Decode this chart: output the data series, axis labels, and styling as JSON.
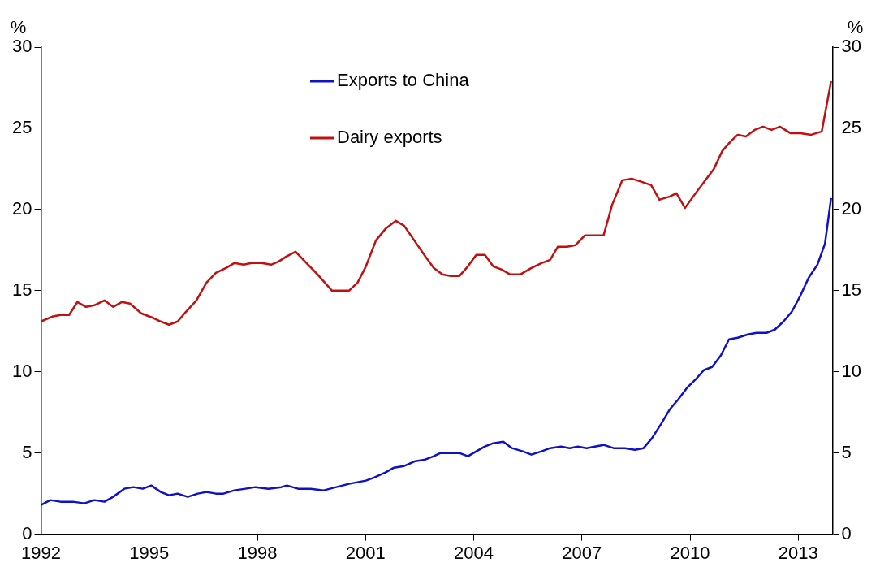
{
  "chart_data": {
    "type": "line",
    "ylabel": "%",
    "y2label": "%",
    "xlim": [
      1992,
      2013.95
    ],
    "xticks": [
      1992,
      1995,
      1998,
      2001,
      2004,
      2007,
      2010,
      2013
    ],
    "ylim": [
      0,
      30
    ],
    "yticks": [
      0,
      5,
      10,
      15,
      20,
      25,
      30
    ],
    "y2lim": [
      0,
      30
    ],
    "y2ticks": [
      0,
      5,
      10,
      15,
      20,
      25,
      30
    ],
    "grid": false,
    "legend": "top",
    "marker": "none",
    "line_style": "solid",
    "series": [
      {
        "name": "Exports to China",
        "color": "#1010c8",
        "x": [
          1992.0,
          1992.26,
          1992.54,
          1992.89,
          1993.2,
          1993.48,
          1993.76,
          1994.0,
          1994.31,
          1994.56,
          1994.82,
          1995.06,
          1995.32,
          1995.55,
          1995.79,
          1996.07,
          1996.35,
          1996.59,
          1996.85,
          1997.06,
          1997.36,
          1997.67,
          1997.95,
          1998.31,
          1998.66,
          1998.82,
          1999.13,
          1999.48,
          1999.84,
          2000.19,
          2000.54,
          2001.01,
          2001.25,
          2001.55,
          2001.79,
          2002.07,
          2002.38,
          2002.66,
          2002.89,
          2003.08,
          2003.36,
          2003.6,
          2003.84,
          2004.07,
          2004.31,
          2004.54,
          2004.82,
          2005.06,
          2005.36,
          2005.6,
          2005.88,
          2006.12,
          2006.42,
          2006.66,
          2006.89,
          2007.13,
          2007.36,
          2007.6,
          2007.88,
          2008.19,
          2008.47,
          2008.71,
          2008.94,
          2009.2,
          2009.44,
          2009.67,
          2009.91,
          2010.14,
          2010.38,
          2010.61,
          2010.85,
          2011.08,
          2011.32,
          2011.6,
          2011.84,
          2012.12,
          2012.35,
          2012.59,
          2012.82,
          2013.06,
          2013.29,
          2013.53,
          2013.74,
          2013.91
        ],
        "values": [
          1.8,
          2.1,
          2.0,
          2.0,
          1.9,
          2.1,
          2.0,
          2.3,
          2.8,
          2.9,
          2.8,
          3.0,
          2.6,
          2.4,
          2.5,
          2.3,
          2.5,
          2.6,
          2.5,
          2.5,
          2.7,
          2.8,
          2.9,
          2.8,
          2.9,
          3.0,
          2.8,
          2.8,
          2.7,
          2.9,
          3.1,
          3.3,
          3.5,
          3.8,
          4.1,
          4.2,
          4.5,
          4.6,
          4.8,
          5.0,
          5.0,
          5.0,
          4.8,
          5.1,
          5.4,
          5.6,
          5.7,
          5.3,
          5.1,
          4.9,
          5.1,
          5.3,
          5.4,
          5.3,
          5.4,
          5.3,
          5.4,
          5.5,
          5.3,
          5.3,
          5.2,
          5.3,
          5.9,
          6.8,
          7.7,
          8.3,
          9.0,
          9.5,
          10.1,
          10.3,
          11.0,
          12.0,
          12.1,
          12.3,
          12.4,
          12.4,
          12.6,
          13.1,
          13.7,
          14.7,
          15.8,
          16.6,
          17.9,
          20.7
        ]
      },
      {
        "name": "Dairy exports",
        "color": "#c01010",
        "x": [
          1992.0,
          1992.31,
          1992.54,
          1992.78,
          1993.01,
          1993.25,
          1993.48,
          1993.76,
          1994.0,
          1994.24,
          1994.47,
          1994.78,
          1995.13,
          1995.32,
          1995.55,
          1995.79,
          1996.02,
          1996.31,
          1996.59,
          1996.85,
          1997.13,
          1997.36,
          1997.62,
          1997.84,
          1998.12,
          1998.38,
          1998.59,
          1998.8,
          1999.06,
          1999.32,
          1999.67,
          2000.07,
          2000.54,
          2000.78,
          2001.01,
          2001.29,
          2001.55,
          2001.84,
          2002.07,
          2002.35,
          2002.66,
          2002.89,
          2003.13,
          2003.36,
          2003.6,
          2003.84,
          2004.07,
          2004.31,
          2004.54,
          2004.78,
          2005.01,
          2005.29,
          2005.6,
          2005.88,
          2006.12,
          2006.33,
          2006.59,
          2006.82,
          2007.08,
          2007.32,
          2007.6,
          2007.84,
          2008.12,
          2008.38,
          2008.66,
          2008.92,
          2009.15,
          2009.44,
          2009.62,
          2009.86,
          2010.12,
          2010.42,
          2010.66,
          2010.89,
          2011.13,
          2011.32,
          2011.55,
          2011.79,
          2012.02,
          2012.26,
          2012.49,
          2012.78,
          2013.06,
          2013.36,
          2013.65,
          2013.91
        ],
        "values": [
          13.1,
          13.4,
          13.5,
          13.5,
          14.3,
          14.0,
          14.1,
          14.4,
          14.0,
          14.3,
          14.2,
          13.6,
          13.3,
          13.1,
          12.9,
          13.1,
          13.7,
          14.4,
          15.5,
          16.1,
          16.4,
          16.7,
          16.6,
          16.7,
          16.7,
          16.6,
          16.8,
          17.1,
          17.4,
          16.8,
          16.0,
          15.0,
          15.0,
          15.5,
          16.5,
          18.1,
          18.8,
          19.3,
          19.0,
          18.1,
          17.1,
          16.4,
          16.0,
          15.9,
          15.9,
          16.5,
          17.2,
          17.2,
          16.5,
          16.3,
          16.0,
          16.0,
          16.4,
          16.7,
          16.9,
          17.7,
          17.7,
          17.8,
          18.4,
          18.4,
          18.4,
          20.3,
          21.8,
          21.9,
          21.7,
          21.5,
          20.6,
          20.8,
          21.0,
          20.1,
          20.9,
          21.8,
          22.5,
          23.6,
          24.2,
          24.6,
          24.5,
          24.9,
          25.1,
          24.9,
          25.1,
          24.7,
          24.7,
          24.6,
          24.8,
          27.9
        ]
      }
    ]
  }
}
